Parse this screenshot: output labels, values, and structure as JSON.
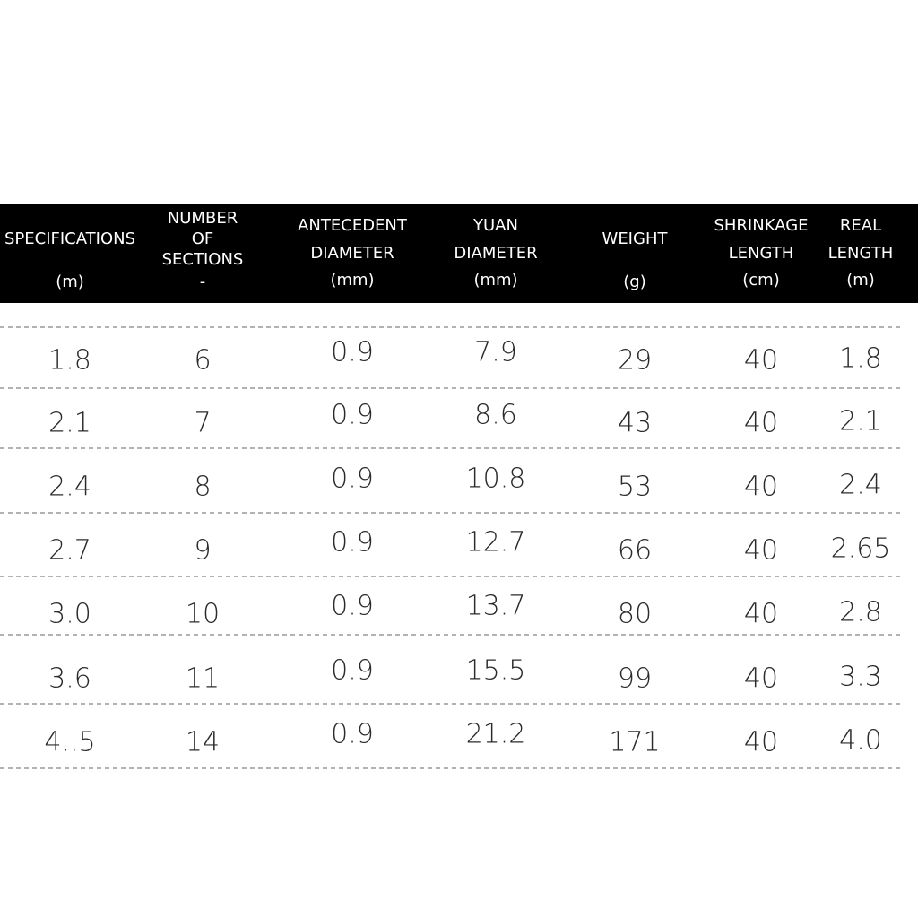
{
  "table": {
    "header": [
      {
        "lines": [
          "SPECIFICATIONS"
        ],
        "unit": "(m)"
      },
      {
        "lines": [
          "NUMBER",
          "OF",
          "SECTIONS"
        ],
        "unit": "-"
      },
      {
        "lines": [
          "ANTECEDENT",
          "DIAMETER"
        ],
        "unit": "(mm)"
      },
      {
        "lines": [
          "YUAN",
          "DIAMETER"
        ],
        "unit": "(mm)"
      },
      {
        "lines": [
          "WEIGHT"
        ],
        "unit": "(g)"
      },
      {
        "lines": [
          "SHRINKAGE",
          "LENGTH"
        ],
        "unit": "(cm)"
      },
      {
        "lines": [
          "REAL",
          "LENGTH"
        ],
        "unit": "(m)"
      }
    ],
    "rows": [
      [
        "1.8",
        "6",
        "0.9",
        "7.9",
        "29",
        "40",
        "1.8"
      ],
      [
        "2.1",
        "7",
        "0.9",
        "8.6",
        "43",
        "40",
        "2.1"
      ],
      [
        "2.4",
        "8",
        "0.9",
        "10.8",
        "53",
        "40",
        "2.4"
      ],
      [
        "2.7",
        "9",
        "0.9",
        "12.7",
        "66",
        "40",
        "2.65"
      ],
      [
        "3.0",
        "10",
        "0.9",
        "13.7",
        "80",
        "40",
        "2.8"
      ],
      [
        "3.6",
        "11",
        "0.9",
        "15.5",
        "99",
        "40",
        "3.3"
      ],
      [
        "4..5",
        "14",
        "0.9",
        "21.2",
        "171",
        "40",
        "4.0"
      ]
    ]
  }
}
